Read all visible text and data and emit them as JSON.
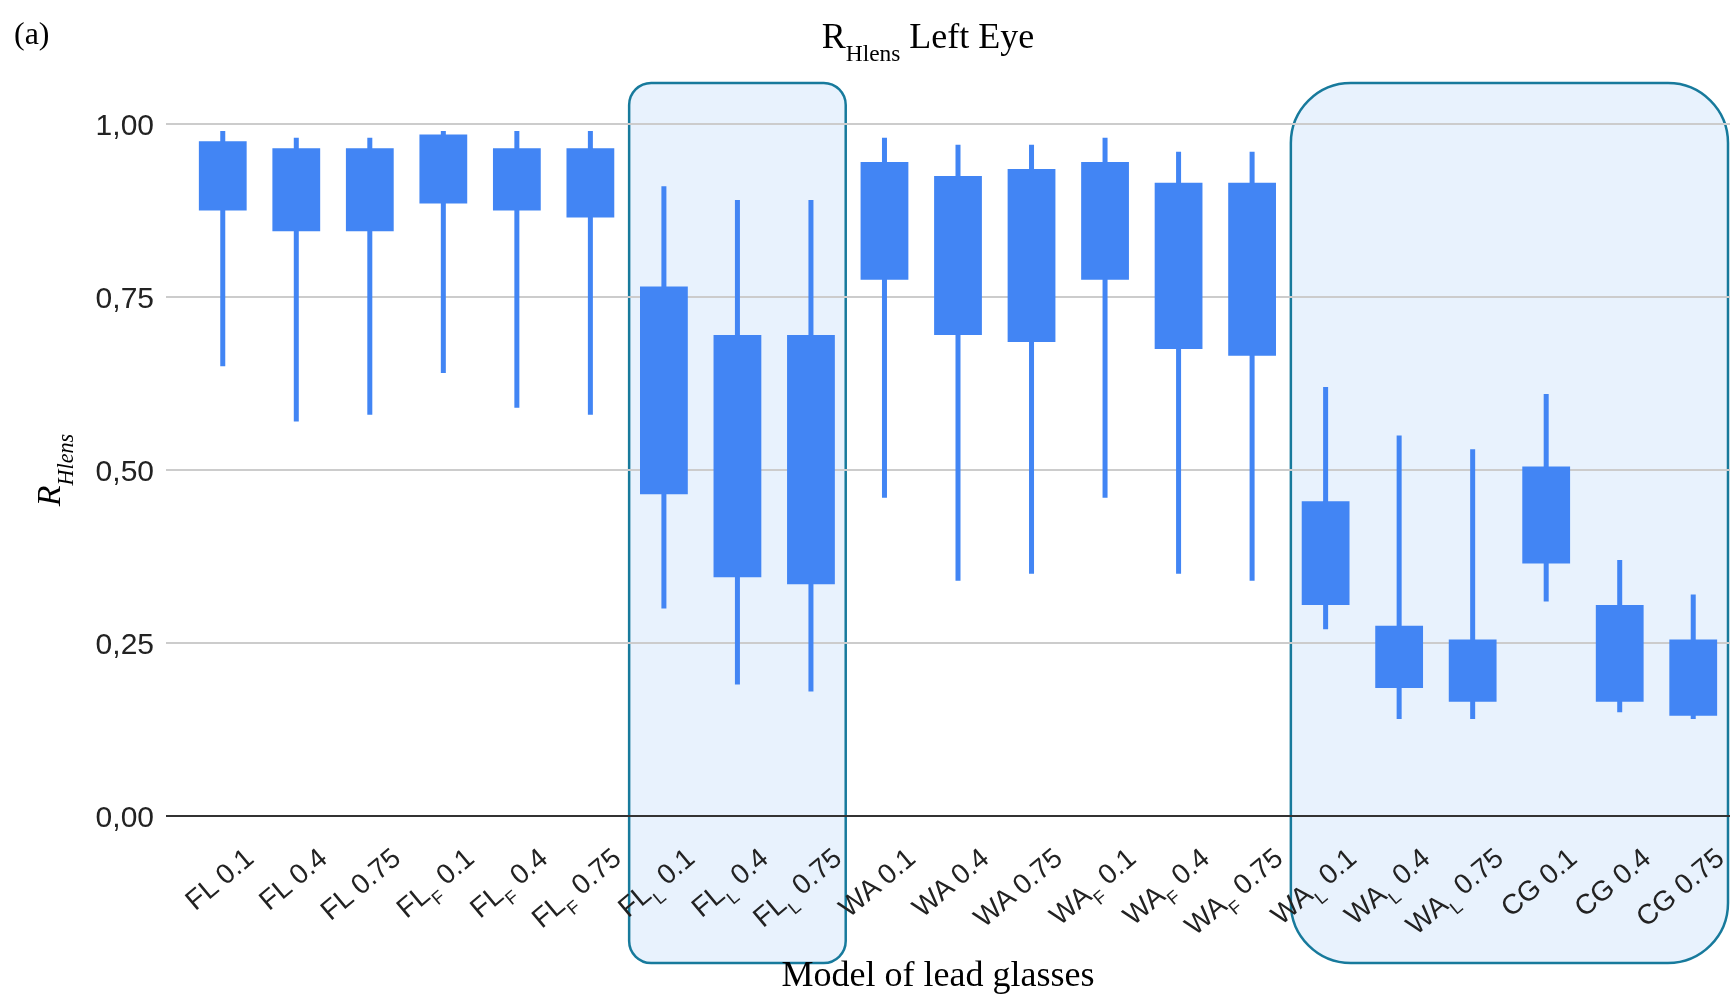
{
  "chart_data": {
    "type": "candlestick",
    "title": "R$_{Hlens}$ Left Eye",
    "xlabel": "Model of lead glasses",
    "ylabel": "R$_{Hlens}$",
    "annotations": [
      "(a)"
    ],
    "categories": [
      "FL 0.1",
      "FL 0.4",
      "FL 0.75",
      "FL$_{F}$ 0.1",
      "FL$_{F}$ 0.4",
      "FL$_{F}$ 0.75",
      "FL$_{L}$ 0.1",
      "FL$_{L}$ 0.4",
      "FL$_{L}$ 0.75",
      "WA 0.1",
      "WA 0.4",
      "WA 0.75",
      "WA$_{F}$ 0.1",
      "WA$_{F}$ 0.4",
      "WA$_{F}$ 0.75",
      "WA$_{L}$ 0.1",
      "WA$_{L}$ 0.4",
      "WA$_{L}$ 0.75",
      "CG 0.1",
      "CG 0.4",
      "CG 0.75"
    ],
    "ohlc": [
      [
        0.875,
        0.99,
        0.65,
        0.975
      ],
      [
        0.845,
        0.98,
        0.57,
        0.965
      ],
      [
        0.845,
        0.98,
        0.58,
        0.965
      ],
      [
        0.885,
        0.99,
        0.64,
        0.985
      ],
      [
        0.875,
        0.99,
        0.59,
        0.965
      ],
      [
        0.865,
        0.99,
        0.58,
        0.965
      ],
      [
        0.465,
        0.91,
        0.3,
        0.765
      ],
      [
        0.345,
        0.89,
        0.19,
        0.695
      ],
      [
        0.335,
        0.89,
        0.18,
        0.695
      ],
      [
        0.775,
        0.98,
        0.46,
        0.945
      ],
      [
        0.695,
        0.97,
        0.34,
        0.925
      ],
      [
        0.685,
        0.97,
        0.35,
        0.935
      ],
      [
        0.775,
        0.98,
        0.46,
        0.945
      ],
      [
        0.675,
        0.96,
        0.35,
        0.915
      ],
      [
        0.665,
        0.96,
        0.34,
        0.915
      ],
      [
        0.305,
        0.62,
        0.27,
        0.455
      ],
      [
        0.185,
        0.55,
        0.14,
        0.275
      ],
      [
        0.165,
        0.53,
        0.14,
        0.255
      ],
      [
        0.365,
        0.61,
        0.31,
        0.505
      ],
      [
        0.165,
        0.37,
        0.15,
        0.305
      ],
      [
        0.145,
        0.32,
        0.14,
        0.255
      ]
    ],
    "color": "#4285f4",
    "ylim": [
      0,
      1
    ],
    "yticks": [
      {
        "value": 0,
        "label": "0,00"
      },
      {
        "value": 0.25,
        "label": "0,25"
      },
      {
        "value": 0.5,
        "label": "0,50"
      },
      {
        "value": 0.75,
        "label": "0,75"
      },
      {
        "value": 1,
        "label": "1,00"
      }
    ],
    "bands": [
      {
        "axis": "x",
        "from": "FL$_{L}$ 0.1",
        "to": "FL$_{L}$ 0.75",
        "color": "#e8f2fd"
      },
      {
        "axis": "x",
        "from": "WA$_{L}$ 0.1",
        "to": "CG 0.75",
        "color": "#e8f2fd"
      }
    ],
    "grid": "y"
  }
}
